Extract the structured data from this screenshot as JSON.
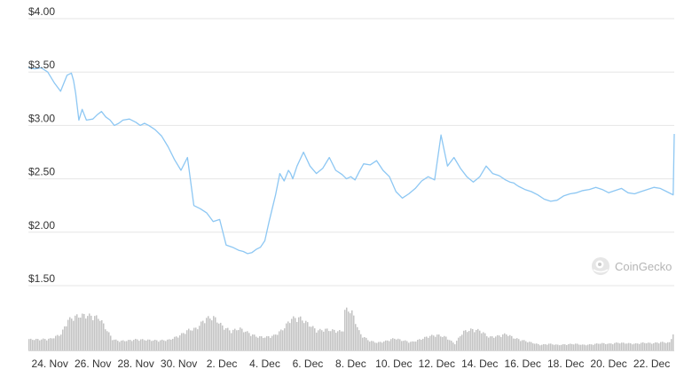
{
  "chart_data": {
    "type": "line",
    "title": "",
    "xlabel": "",
    "ylabel": "",
    "watermark": "CoinGecko",
    "y_ticks": [
      "$4.00",
      "$3.50",
      "$3.00",
      "$2.50",
      "$2.00",
      "$1.50"
    ],
    "ylim": [
      1.5,
      4.0
    ],
    "x_ticks": [
      "24. Nov",
      "26. Nov",
      "28. Nov",
      "30. Nov",
      "2. Dec",
      "4. Dec",
      "6. Dec",
      "8. Dec",
      "10. Dec",
      "12. Dec",
      "14. Dec",
      "16. Dec",
      "18. Dec",
      "20. Dec",
      "22. Dec"
    ],
    "grid": true,
    "legend": "none",
    "colors": {
      "price": "#8dc7f3",
      "volume": "#c3c3c3",
      "grid": "#e6e6e6"
    },
    "series": [
      {
        "name": "",
        "type": "line",
        "x": [
          23.0,
          23.3,
          23.6,
          23.9,
          24.2,
          24.5,
          24.8,
          25.0,
          25.1,
          25.2,
          25.35,
          25.5,
          25.7,
          26.0,
          26.2,
          26.4,
          26.6,
          26.8,
          27.0,
          27.2,
          27.4,
          27.7,
          28.0,
          28.2,
          28.4,
          28.6,
          28.9,
          29.2,
          29.5,
          29.8,
          30.1,
          30.4,
          30.7,
          31.0,
          31.3,
          31.6,
          31.9,
          32.2,
          32.5,
          32.8,
          33.0,
          33.2,
          33.4,
          33.6,
          33.8,
          34.0,
          34.2,
          34.5,
          34.7,
          34.9,
          35.1,
          35.2,
          35.3,
          35.5,
          35.8,
          36.1,
          36.4,
          36.7,
          37.0,
          37.3,
          37.6,
          37.8,
          38.0,
          38.2,
          38.4,
          38.6,
          38.9,
          39.2,
          39.5,
          39.8,
          40.1,
          40.4,
          40.7,
          41.0,
          41.3,
          41.6,
          41.9,
          42.2,
          42.5,
          42.8,
          43.1,
          43.4,
          43.7,
          44.0,
          44.3,
          44.6,
          44.9,
          45.2,
          45.4,
          45.6,
          45.65,
          45.8,
          46.1,
          46.4,
          46.7,
          47.0,
          47.3,
          47.6,
          47.9,
          48.2,
          48.5,
          48.8,
          49.1,
          49.4,
          49.7,
          50.0,
          50.3,
          50.6,
          50.9,
          51.2,
          51.5,
          51.8,
          52.1,
          52.4,
          52.7,
          53.0,
          53.05
        ],
        "y": [
          3.54,
          3.53,
          3.54,
          3.5,
          3.4,
          3.32,
          3.47,
          3.49,
          3.42,
          3.3,
          3.05,
          3.15,
          3.05,
          3.06,
          3.1,
          3.13,
          3.08,
          3.05,
          3.0,
          3.02,
          3.05,
          3.06,
          3.03,
          3.0,
          3.02,
          3.0,
          2.96,
          2.9,
          2.8,
          2.68,
          2.58,
          2.7,
          2.25,
          2.22,
          2.18,
          2.1,
          2.12,
          1.88,
          1.86,
          1.83,
          1.82,
          1.8,
          1.81,
          1.84,
          1.86,
          1.92,
          2.1,
          2.35,
          2.55,
          2.48,
          2.58,
          2.55,
          2.5,
          2.62,
          2.75,
          2.62,
          2.55,
          2.6,
          2.7,
          2.58,
          2.54,
          2.5,
          2.52,
          2.49,
          2.57,
          2.64,
          2.63,
          2.67,
          2.58,
          2.52,
          2.38,
          2.32,
          2.36,
          2.41,
          2.48,
          2.52,
          2.49,
          2.91,
          2.62,
          2.7,
          2.6,
          2.52,
          2.47,
          2.52,
          2.62,
          2.55,
          2.53,
          2.49,
          2.47,
          2.46,
          2.45,
          2.43,
          2.4,
          2.38,
          2.35,
          2.31,
          2.29,
          2.3,
          2.34,
          2.36,
          2.37,
          2.39,
          2.4,
          2.42,
          2.4,
          2.37,
          2.39,
          2.41,
          2.37,
          2.36,
          2.38,
          2.4,
          2.42,
          2.41,
          2.38,
          2.35,
          2.92
        ]
      },
      {
        "name": "",
        "type": "volume",
        "x": [
          23.0,
          23.5,
          24.0,
          24.5,
          24.8,
          25.2,
          25.6,
          26.0,
          26.3,
          26.6,
          26.9,
          27.2,
          27.6,
          28.0,
          28.5,
          29.0,
          29.5,
          30.0,
          30.4,
          30.8,
          31.2,
          31.6,
          32.0,
          32.4,
          32.8,
          33.2,
          33.6,
          34.0,
          34.4,
          34.8,
          35.2,
          35.6,
          36.0,
          36.4,
          36.8,
          37.2,
          37.6,
          37.7,
          38.0,
          38.4,
          38.8,
          39.2,
          39.6,
          40.0,
          40.4,
          40.8,
          41.2,
          41.6,
          42.0,
          42.4,
          42.8,
          43.2,
          43.6,
          44.0,
          44.4,
          44.8,
          45.2,
          45.6,
          46.0,
          46.4,
          46.8,
          47.2,
          47.6,
          48.0,
          48.4,
          48.8,
          49.2,
          49.6,
          50.0,
          50.4,
          50.8,
          51.2,
          51.6,
          52.0,
          52.4,
          52.8,
          53.05
        ],
        "y": [
          0.2,
          0.2,
          0.21,
          0.3,
          0.55,
          0.62,
          0.64,
          0.62,
          0.58,
          0.38,
          0.2,
          0.17,
          0.18,
          0.2,
          0.19,
          0.18,
          0.19,
          0.27,
          0.37,
          0.4,
          0.58,
          0.6,
          0.44,
          0.35,
          0.4,
          0.32,
          0.25,
          0.24,
          0.27,
          0.38,
          0.58,
          0.59,
          0.48,
          0.36,
          0.38,
          0.36,
          0.34,
          0.74,
          0.72,
          0.3,
          0.18,
          0.14,
          0.17,
          0.22,
          0.18,
          0.15,
          0.2,
          0.26,
          0.28,
          0.24,
          0.12,
          0.34,
          0.38,
          0.36,
          0.24,
          0.26,
          0.3,
          0.22,
          0.18,
          0.14,
          0.1,
          0.12,
          0.1,
          0.11,
          0.12,
          0.1,
          0.11,
          0.13,
          0.12,
          0.14,
          0.13,
          0.12,
          0.14,
          0.13,
          0.15,
          0.14,
          0.38
        ]
      }
    ]
  }
}
